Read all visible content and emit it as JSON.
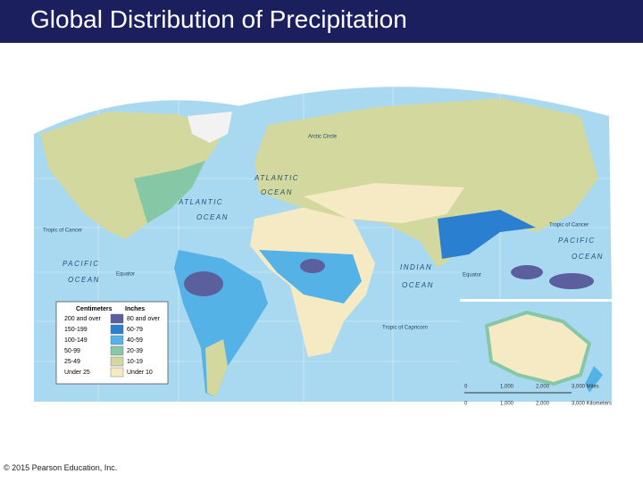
{
  "header": {
    "title": "Global Distribution of Precipitation"
  },
  "map": {
    "labels": [
      "Arctic Circle",
      "ATLANTIC",
      "OCEAN",
      "ATLANTIC",
      "OCEAN",
      "PACIFIC",
      "OCEAN",
      "INDIAN",
      "OCEAN",
      "PACIFIC",
      "OCEAN",
      "Tropic of Cancer",
      "Tropic of Cancer",
      "Equator",
      "Equator",
      "Tropic of Capricorn"
    ]
  },
  "legend": {
    "headers": [
      "Centimeters",
      "Inches"
    ],
    "rows": [
      {
        "cm": "200 and over",
        "in": "80 and over",
        "color": "#5c5f9e"
      },
      {
        "cm": "150-199",
        "in": "60-79",
        "color": "#2a7fd0"
      },
      {
        "cm": "100-149",
        "in": "40-59",
        "color": "#55b2e6"
      },
      {
        "cm": "50-99",
        "in": "20-39",
        "color": "#86c8a6"
      },
      {
        "cm": "25-49",
        "in": "10-19",
        "color": "#d3d89e"
      },
      {
        "cm": "Under 25",
        "in": "Under 10",
        "color": "#f6eac4"
      }
    ]
  },
  "scale": {
    "miles": [
      "0",
      "1,000",
      "2,000",
      "3,000 Miles"
    ],
    "km": [
      "0",
      "1,000",
      "2,000",
      "3,000 Kilometers"
    ]
  },
  "footer": {
    "copyright": "© 2015 Pearson Education, Inc."
  }
}
